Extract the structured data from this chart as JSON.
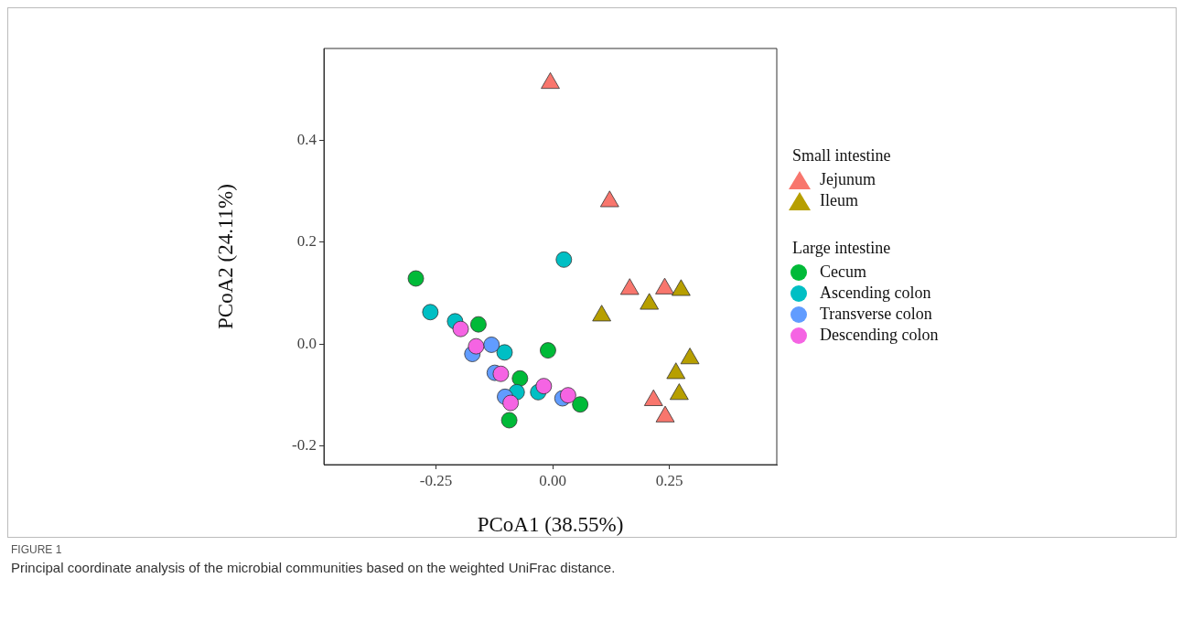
{
  "chart_data": {
    "type": "scatter",
    "xlabel": "PCoA1 (38.55%)",
    "ylabel": "PCoA2 (24.11%)",
    "legend_title": [
      "Small intestine",
      "Large intestine"
    ],
    "xlim": [
      -0.49,
      0.48
    ],
    "ylim": [
      -0.236,
      0.58
    ],
    "xticks": [
      -0.25,
      {
        "value": 0,
        "label": "0.00"
      },
      0.25
    ],
    "yticks": [
      -0.2,
      {
        "value": 0,
        "label": "0.0"
      },
      0.2,
      0.4
    ],
    "grid": false,
    "legend": "right",
    "series": [
      {
        "name": "Jejunum",
        "color": "#f8766d",
        "marker": "triangle",
        "x": [
          -0.005,
          0.122,
          0.165,
          0.24,
          0.216,
          0.241
        ],
        "values": [
          0.512,
          0.28,
          0.108,
          0.109,
          -0.11,
          -0.142
        ]
      },
      {
        "name": "Ileum",
        "color": "#b79f00",
        "marker": "triangle",
        "x": [
          0.105,
          0.207,
          0.275,
          0.294,
          0.264,
          0.271
        ],
        "values": [
          0.056,
          0.079,
          0.106,
          -0.028,
          -0.057,
          -0.098
        ]
      },
      {
        "name": "Cecum",
        "color": "#00ba38",
        "marker": "circle",
        "x": [
          -0.293,
          -0.159,
          -0.01,
          -0.07,
          -0.093,
          0.059
        ],
        "values": [
          0.129,
          0.039,
          -0.012,
          -0.067,
          -0.149,
          -0.118
        ]
      },
      {
        "name": "Ascending colon",
        "color": "#00bfc4",
        "marker": "circle",
        "x": [
          -0.262,
          -0.209,
          0.024,
          -0.103,
          -0.077,
          -0.031
        ],
        "values": [
          0.063,
          0.045,
          0.166,
          -0.016,
          -0.094,
          -0.094
        ]
      },
      {
        "name": "Transverse colon",
        "color": "#619cff",
        "marker": "circle",
        "x": [
          -0.172,
          -0.131,
          -0.124,
          -0.102,
          0.021
        ],
        "values": [
          -0.019,
          -0.001,
          -0.056,
          -0.103,
          -0.106
        ]
      },
      {
        "name": "Descending colon",
        "color": "#f564e3",
        "marker": "circle",
        "x": [
          -0.197,
          -0.164,
          -0.111,
          -0.09,
          -0.019,
          0.033
        ],
        "values": [
          0.03,
          -0.004,
          -0.058,
          -0.115,
          -0.082,
          -0.1
        ]
      }
    ],
    "annotations": [
      "FIGURE 1",
      "Principal coordinate analysis of the microbial communities based on the weighted UniFrac distance."
    ]
  }
}
